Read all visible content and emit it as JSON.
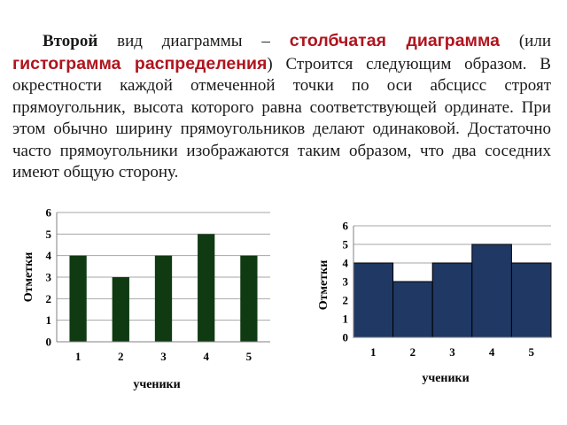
{
  "text": {
    "part1": "Второй",
    "part2": " вид диаграммы – ",
    "part3": "столбчатая диаграмма",
    "part4": " (или ",
    "part5": "гистограмма распределения",
    "part6": ") Строится следующим образом. В окрестности каждой отмеченной точки по оси абсцисс строят прямоугольник, высота которого равна соответствующей ординате. При этом обычно ширину прямоугольников делают одинаковой. Достаточно часто прямоугольники изображаются таким образом, что два соседних имеют общую сторону."
  },
  "colors": {
    "bar_chart_fill": "#0f3a12",
    "histogram_fill": "#1f3864",
    "histogram_stroke": "#000000",
    "term_red": "#b0141e"
  },
  "chart_data": [
    {
      "type": "bar",
      "categories": [
        "1",
        "2",
        "3",
        "4",
        "5"
      ],
      "values": [
        4,
        3,
        4,
        5,
        4
      ],
      "xlabel": "ученики",
      "ylabel": "Отметки",
      "ylim": [
        0,
        6
      ],
      "y_ticks": [
        "0",
        "1",
        "2",
        "3",
        "4",
        "5",
        "6"
      ],
      "grid": true
    },
    {
      "type": "bar",
      "categories": [
        "1",
        "2",
        "3",
        "4",
        "5"
      ],
      "values": [
        4,
        3,
        4,
        5,
        4
      ],
      "xlabel": "ученики",
      "ylabel": "Отметки",
      "ylim": [
        0,
        6
      ],
      "y_ticks": [
        "0",
        "1",
        "2",
        "3",
        "4",
        "5",
        "6"
      ],
      "grid": true
    }
  ]
}
